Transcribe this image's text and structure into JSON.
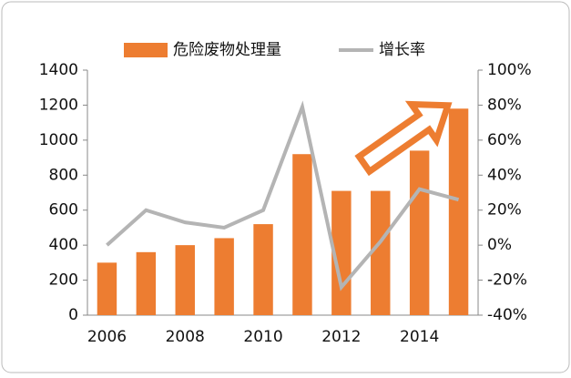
{
  "chart_data": {
    "type": "bar_line",
    "categories": [
      "2006",
      null,
      "2008",
      null,
      "2010",
      null,
      "2012",
      null,
      "2014",
      null
    ],
    "series": [
      {
        "name": "危险废物处理量",
        "type": "bar",
        "color": "#ed7d31",
        "values": [
          300,
          360,
          400,
          440,
          520,
          920,
          710,
          710,
          940,
          1180
        ]
      },
      {
        "name": "增长率",
        "type": "line",
        "axis": "y2",
        "color": "#b4b4b4",
        "values": [
          0,
          20,
          13,
          10,
          20,
          79,
          -24,
          2,
          32,
          26
        ]
      }
    ],
    "ylim": [
      0,
      1400
    ],
    "yticks": [
      0,
      200,
      400,
      600,
      800,
      1000,
      1200,
      1400
    ],
    "y2lim": [
      -40,
      100
    ],
    "y2ticks": [
      {
        "value": -40,
        "label": "-40%"
      },
      {
        "value": -20,
        "label": "-20%"
      },
      {
        "value": 0,
        "label": "0%"
      },
      {
        "value": 20,
        "label": "20%"
      },
      {
        "value": 40,
        "label": "40%"
      },
      {
        "value": 60,
        "label": "60%"
      },
      {
        "value": 80,
        "label": "80%"
      },
      {
        "value": 100,
        "label": "100%"
      }
    ],
    "legend": "top"
  }
}
